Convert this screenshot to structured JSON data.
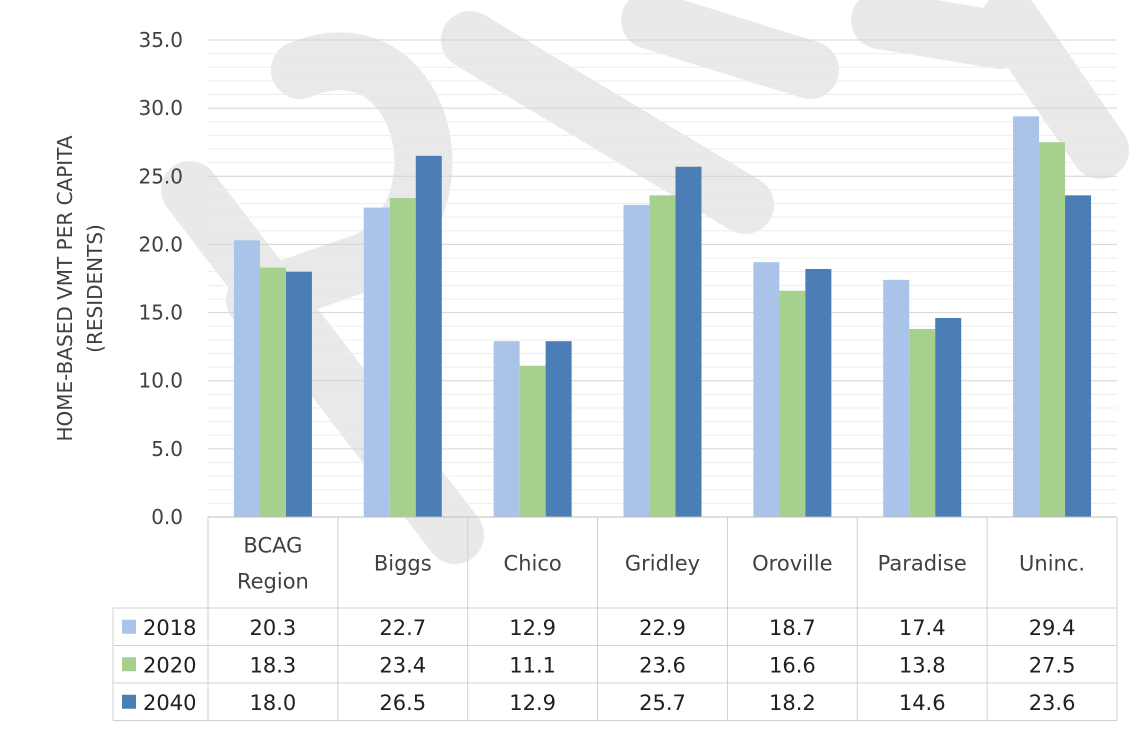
{
  "chart_data": {
    "type": "bar",
    "ylabel_lines": [
      "HOME-BASED VMT PER CAPITA",
      "(RESIDENTS)"
    ],
    "ylim": [
      0,
      35
    ],
    "yticks": [
      "0.0",
      "5.0",
      "10.0",
      "15.0",
      "20.0",
      "25.0",
      "30.0",
      "35.0"
    ],
    "grid": true,
    "legend": "data-table",
    "categories": [
      {
        "lines": [
          "BCAG",
          "Region"
        ]
      },
      {
        "lines": [
          "Biggs"
        ]
      },
      {
        "lines": [
          "Chico"
        ]
      },
      {
        "lines": [
          "Gridley"
        ]
      },
      {
        "lines": [
          "Oroville"
        ]
      },
      {
        "lines": [
          "Paradise"
        ]
      },
      {
        "lines": [
          "Uninc."
        ]
      }
    ],
    "series": [
      {
        "name": "2018",
        "color": "#a9c4e8",
        "values": [
          20.3,
          22.7,
          12.9,
          22.9,
          18.7,
          17.4,
          29.4
        ],
        "labels": [
          "20.3",
          "22.7",
          "12.9",
          "22.9",
          "18.7",
          "17.4",
          "29.4"
        ]
      },
      {
        "name": "2020",
        "color": "#a6d08e",
        "values": [
          18.3,
          23.4,
          11.1,
          23.6,
          16.6,
          13.8,
          27.5
        ],
        "labels": [
          "18.3",
          "23.4",
          "11.1",
          "23.6",
          "16.6",
          "13.8",
          "27.5"
        ]
      },
      {
        "name": "2040",
        "color": "#4a7eb4",
        "values": [
          18.0,
          26.5,
          12.9,
          25.7,
          18.2,
          14.6,
          23.6
        ],
        "labels": [
          "18.0",
          "26.5",
          "12.9",
          "25.7",
          "18.2",
          "14.6",
          "23.6"
        ]
      }
    ]
  }
}
